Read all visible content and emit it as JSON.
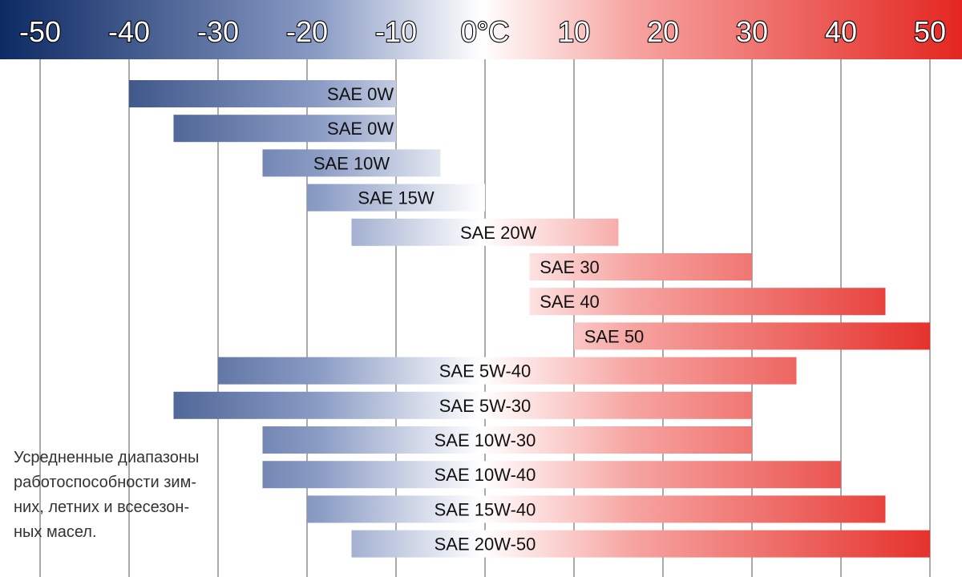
{
  "chart_data": {
    "type": "bar",
    "orientation": "horizontal-range",
    "title": "",
    "xlabel": "",
    "ylabel": "",
    "xlim": [
      -55,
      55
    ],
    "grid": true,
    "x_ticks": [
      "-50",
      "-40",
      "-30",
      "-20",
      "-10",
      "0°C",
      "10",
      "20",
      "30",
      "40",
      "50"
    ],
    "colors": {
      "cold": "#0d2a63",
      "neutral": "#ffffff",
      "hot": "#e42620"
    },
    "bars": [
      {
        "label": "SAE 0W",
        "min": -40,
        "max": -10
      },
      {
        "label": "SAE 0W",
        "min": -35,
        "max": -10
      },
      {
        "label": "SAE 10W",
        "min": -25,
        "max": -5
      },
      {
        "label": "SAE 15W",
        "min": -20,
        "max": 0
      },
      {
        "label": "SAE 20W",
        "min": -15,
        "max": 15
      },
      {
        "label": "SAE 30",
        "min": 5,
        "max": 30
      },
      {
        "label": "SAE 40",
        "min": 5,
        "max": 45
      },
      {
        "label": "SAE 50",
        "min": 10,
        "max": 50
      },
      {
        "label": "SAE 5W-40",
        "min": -30,
        "max": 35
      },
      {
        "label": "SAE 5W-30",
        "min": -35,
        "max": 30
      },
      {
        "label": "SAE 10W-30",
        "min": -25,
        "max": 30
      },
      {
        "label": "SAE 10W-40",
        "min": -25,
        "max": 40
      },
      {
        "label": "SAE 15W-40",
        "min": -20,
        "max": 45
      },
      {
        "label": "SAE 20W-50",
        "min": -15,
        "max": 50
      }
    ]
  },
  "note": {
    "lines": [
      "Усредненные диапазоны",
      "работоспособности зим-",
      "них, летних и всесезон-",
      "ных масел."
    ]
  }
}
